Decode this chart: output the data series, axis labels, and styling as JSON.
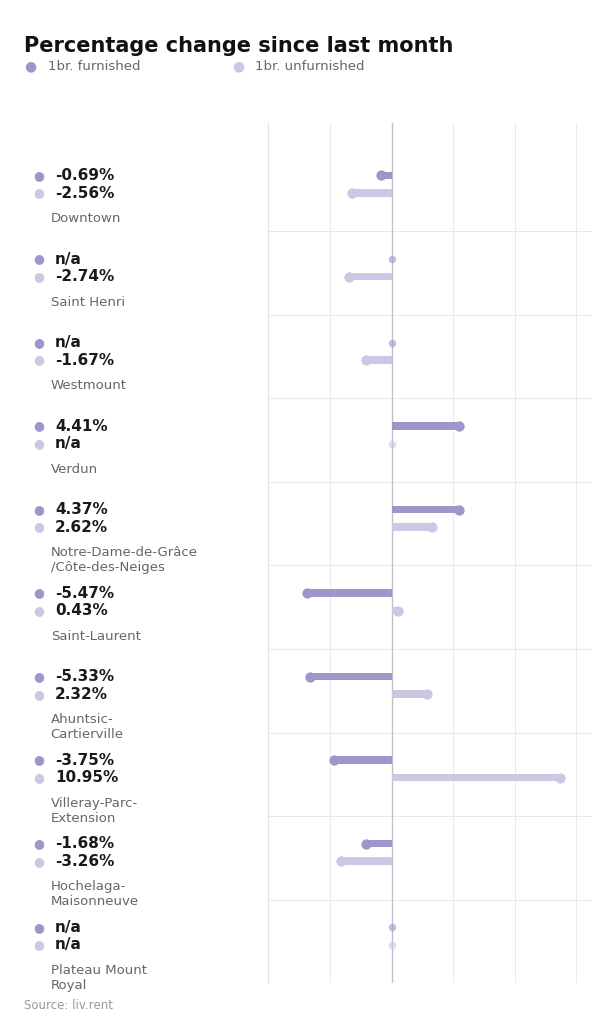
{
  "title": "Percentage change since last month",
  "legend": [
    {
      "label": "1br. furnished",
      "color": "#9b97c9"
    },
    {
      "label": "1br. unfurnished",
      "color": "#cac8e3"
    }
  ],
  "neighbourhoods": [
    {
      "name": "Downtown",
      "furnished": -0.69,
      "unfurnished": -2.56,
      "furnished_na": false,
      "unfurnished_na": false
    },
    {
      "name": "Saint Henri",
      "furnished": null,
      "unfurnished": -2.74,
      "furnished_na": true,
      "unfurnished_na": false
    },
    {
      "name": "Westmount",
      "furnished": null,
      "unfurnished": -1.67,
      "furnished_na": true,
      "unfurnished_na": false
    },
    {
      "name": "Verdun",
      "furnished": 4.41,
      "unfurnished": null,
      "furnished_na": false,
      "unfurnished_na": true
    },
    {
      "name": "Notre-Dame-de-Grâce\n/Côte-des-Neiges",
      "furnished": 4.37,
      "unfurnished": 2.62,
      "furnished_na": false,
      "unfurnished_na": false
    },
    {
      "name": "Saint-Laurent",
      "furnished": -5.47,
      "unfurnished": 0.43,
      "furnished_na": false,
      "unfurnished_na": false
    },
    {
      "name": "Ahuntsic-\nCartierville",
      "furnished": -5.33,
      "unfurnished": 2.32,
      "furnished_na": false,
      "unfurnished_na": false
    },
    {
      "name": "Villeray-Parc-\nExtension",
      "furnished": -3.75,
      "unfurnished": 10.95,
      "furnished_na": false,
      "unfurnished_na": false
    },
    {
      "name": "Hochelaga-\nMaisonneuve",
      "furnished": -1.68,
      "unfurnished": -3.26,
      "furnished_na": false,
      "unfurnished_na": false
    },
    {
      "name": "Plateau Mount\nRoyal",
      "furnished": null,
      "unfurnished": null,
      "furnished_na": true,
      "unfurnished_na": true
    }
  ],
  "color_furnished": "#9b97c9",
  "color_unfurnished": "#cac8e3",
  "color_grid": "#e8e8f0",
  "color_zeroline": "#c0c0cc",
  "background_color": "#ffffff",
  "title_fontsize": 15,
  "legend_fontsize": 9.5,
  "value_fontsize": 11,
  "name_fontsize": 9.5,
  "source_text": "Source: liv.rent",
  "source_fontsize": 8.5,
  "xlim_left": -8,
  "xlim_right": 13
}
